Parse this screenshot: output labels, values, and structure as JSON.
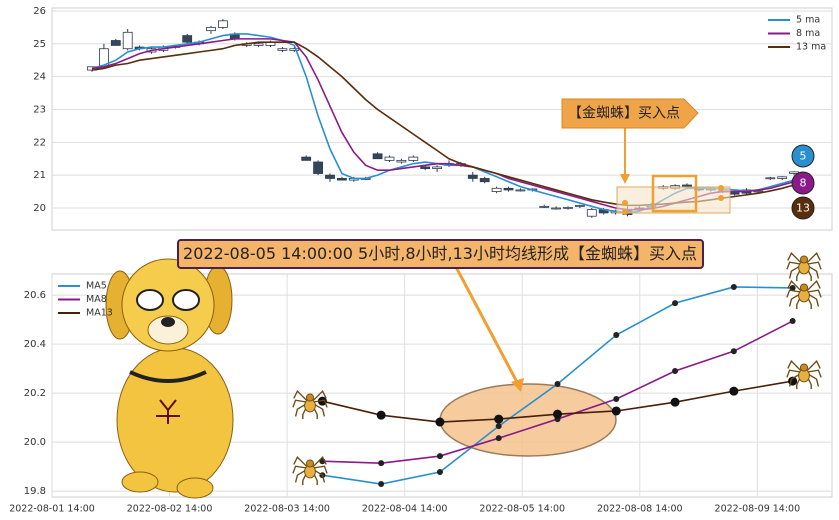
{
  "chart_data": [
    {
      "type": "candlestick",
      "open": [
        24.2,
        24.3,
        25.1,
        24.85,
        24.9,
        24.75,
        24.8,
        24.9,
        25.25,
        25.0,
        25.4,
        25.5,
        25.3,
        24.95,
        24.95,
        24.95,
        24.8,
        24.8,
        21.55,
        21.4,
        21.0,
        20.9,
        20.85,
        20.9,
        21.65,
        21.45,
        21.4,
        21.45,
        21.25,
        21.2,
        21.3,
        21.3,
        21.0,
        20.9,
        20.5,
        20.6,
        20.55,
        20.55,
        20.05,
        20.0,
        20.0,
        20.05,
        19.75,
        19.95,
        19.85,
        19.95,
        20.0,
        20.05,
        20.6,
        20.6,
        20.7,
        20.6,
        20.55,
        20.5,
        20.5,
        20.55,
        20.5,
        20.9,
        20.9,
        21.05
      ],
      "high": [
        24.3,
        25.0,
        25.15,
        25.45,
        24.95,
        24.9,
        24.95,
        24.95,
        25.3,
        25.1,
        25.55,
        25.75,
        25.35,
        25.05,
        25.05,
        25.1,
        24.9,
        24.9,
        21.6,
        21.45,
        21.05,
        20.95,
        20.95,
        20.95,
        21.7,
        21.6,
        21.5,
        21.6,
        21.3,
        21.3,
        21.45,
        21.4,
        21.1,
        20.95,
        20.65,
        20.65,
        20.6,
        20.6,
        20.1,
        20.05,
        20.05,
        20.1,
        20.0,
        20.0,
        19.95,
        20.05,
        20.05,
        20.15,
        20.7,
        20.72,
        20.75,
        20.65,
        20.6,
        20.55,
        20.55,
        20.6,
        20.55,
        20.95,
        20.97,
        21.12
      ],
      "low": [
        24.15,
        24.25,
        24.95,
        24.8,
        24.8,
        24.7,
        24.75,
        24.85,
        25.0,
        24.95,
        25.3,
        25.45,
        25.1,
        24.9,
        24.9,
        24.9,
        24.75,
        24.75,
        21.45,
        21.0,
        20.8,
        20.85,
        20.8,
        20.85,
        21.5,
        21.4,
        21.35,
        21.4,
        21.15,
        21.1,
        21.25,
        21.25,
        20.8,
        20.75,
        20.45,
        20.5,
        20.5,
        20.5,
        20.0,
        19.95,
        19.95,
        20.0,
        19.7,
        19.8,
        19.8,
        19.75,
        19.9,
        20.0,
        20.55,
        20.55,
        20.6,
        20.5,
        20.5,
        20.45,
        20.38,
        20.4,
        20.45,
        20.85,
        20.85,
        21.0
      ],
      "close": [
        24.3,
        24.85,
        24.95,
        25.35,
        24.85,
        24.85,
        24.9,
        24.92,
        25.05,
        25.05,
        25.5,
        25.7,
        25.15,
        25.0,
        25.0,
        25.05,
        24.85,
        24.85,
        21.45,
        21.05,
        20.9,
        20.85,
        20.9,
        20.9,
        21.5,
        21.55,
        21.45,
        21.55,
        21.2,
        21.25,
        21.35,
        21.35,
        20.9,
        20.8,
        20.6,
        20.55,
        20.55,
        20.58,
        20.05,
        20.0,
        20.02,
        20.08,
        19.95,
        19.85,
        19.9,
        19.8,
        19.95,
        20.1,
        20.65,
        20.68,
        20.65,
        20.55,
        20.58,
        20.52,
        20.42,
        20.45,
        20.52,
        20.92,
        20.95,
        21.1
      ],
      "series": [
        {
          "name": "5 ma",
          "color": "#2a8fd0",
          "values": [
            24.25,
            24.35,
            24.5,
            24.75,
            24.85,
            24.9,
            24.9,
            24.95,
            25.0,
            25.05,
            25.15,
            25.25,
            25.3,
            25.3,
            25.25,
            25.2,
            25.1,
            24.95,
            24.0,
            22.8,
            21.8,
            21.05,
            20.9,
            20.9,
            21.0,
            21.15,
            21.25,
            21.35,
            21.4,
            21.35,
            21.3,
            21.3,
            21.25,
            21.1,
            20.95,
            20.8,
            20.65,
            20.55,
            20.45,
            20.35,
            20.25,
            20.15,
            20.05,
            19.95,
            19.9,
            19.85,
            19.9,
            20.05,
            20.25,
            20.45,
            20.6,
            20.6,
            20.6,
            20.58,
            20.55,
            20.52,
            20.55,
            20.65,
            20.75,
            20.85
          ]
        },
        {
          "name": "8 ma",
          "color": "#8a1a8a",
          "values": [
            24.25,
            24.3,
            24.4,
            24.55,
            24.7,
            24.8,
            24.85,
            24.9,
            24.95,
            25.0,
            25.05,
            25.1,
            25.15,
            25.15,
            25.15,
            25.15,
            25.1,
            25.05,
            24.6,
            23.9,
            23.1,
            22.3,
            21.7,
            21.3,
            21.15,
            21.15,
            21.2,
            21.25,
            21.3,
            21.35,
            21.35,
            21.3,
            21.25,
            21.15,
            21.05,
            20.9,
            20.8,
            20.7,
            20.6,
            20.5,
            20.4,
            20.3,
            20.2,
            20.1,
            20.0,
            19.95,
            19.95,
            19.98,
            20.05,
            20.15,
            20.25,
            20.35,
            20.45,
            20.5,
            20.5,
            20.5,
            20.55,
            20.6,
            20.7,
            20.8
          ]
        },
        {
          "name": "13 ma",
          "color": "#5a2d0c",
          "values": [
            24.2,
            24.25,
            24.35,
            24.4,
            24.5,
            24.55,
            24.6,
            24.65,
            24.7,
            24.75,
            24.8,
            24.85,
            24.95,
            25.0,
            25.05,
            25.05,
            25.05,
            25.05,
            24.85,
            24.6,
            24.3,
            24.0,
            23.65,
            23.3,
            23.0,
            22.75,
            22.5,
            22.25,
            22.0,
            21.75,
            21.5,
            21.35,
            21.25,
            21.15,
            21.05,
            20.95,
            20.85,
            20.75,
            20.65,
            20.55,
            20.45,
            20.35,
            20.25,
            20.18,
            20.12,
            20.08,
            20.08,
            20.1,
            20.12,
            20.15,
            20.18,
            20.2,
            20.25,
            20.3,
            20.35,
            20.4,
            20.45,
            20.52,
            20.6,
            20.7
          ]
        }
      ],
      "ylim": [
        19.33,
        26.09
      ],
      "yticks": [
        20,
        21,
        22,
        23,
        24,
        25,
        26
      ],
      "grid": true,
      "legend": "upper right",
      "annotation": "【金蜘蛛】买入点",
      "badges": [
        "5",
        "8",
        "13"
      ]
    },
    {
      "type": "line",
      "x": [
        4.6,
        5.6,
        6.6,
        7.6,
        8.6,
        9.6,
        10.6,
        11.6,
        12.6
      ],
      "series": [
        {
          "name": "MA5",
          "color": "#2a8fd0",
          "values": [
            19.865,
            19.829,
            19.878,
            20.065,
            20.237,
            20.437,
            20.567,
            20.633,
            20.629
          ]
        },
        {
          "name": "MA8",
          "color": "#8a1a8a",
          "values": [
            19.922,
            19.914,
            19.943,
            20.016,
            20.094,
            20.176,
            20.29,
            20.371,
            20.494
          ]
        },
        {
          "name": "MA13",
          "color": "#4a1f0a",
          "values": [
            20.167,
            20.11,
            20.082,
            20.094,
            20.114,
            20.127,
            20.163,
            20.208,
            20.249
          ]
        }
      ],
      "xlim": [
        0,
        13.27
      ],
      "xticks": [
        {
          "value": 0,
          "label": "2022-08-01 14:00"
        },
        {
          "value": 2,
          "label": "2022-08-02 14:00"
        },
        {
          "value": 4,
          "label": "2022-08-03 14:00"
        },
        {
          "value": 6,
          "label": "2022-08-04 14:00"
        },
        {
          "value": 8,
          "label": "2022-08-05 14:00"
        },
        {
          "value": 10,
          "label": "2022-08-08 14:00"
        },
        {
          "value": 12,
          "label": "2022-08-09 14:00"
        }
      ],
      "ylim": [
        19.776,
        20.686
      ],
      "yticks": [
        19.8,
        {
          "value": 20,
          "label": "20.0"
        },
        20.2,
        20.4,
        20.6
      ],
      "grid": true,
      "legend": "upper left",
      "annotation": "2022-08-05 14:00:00 5小时,8小时,13小时均线形成【金蜘蛛】买入点"
    }
  ]
}
